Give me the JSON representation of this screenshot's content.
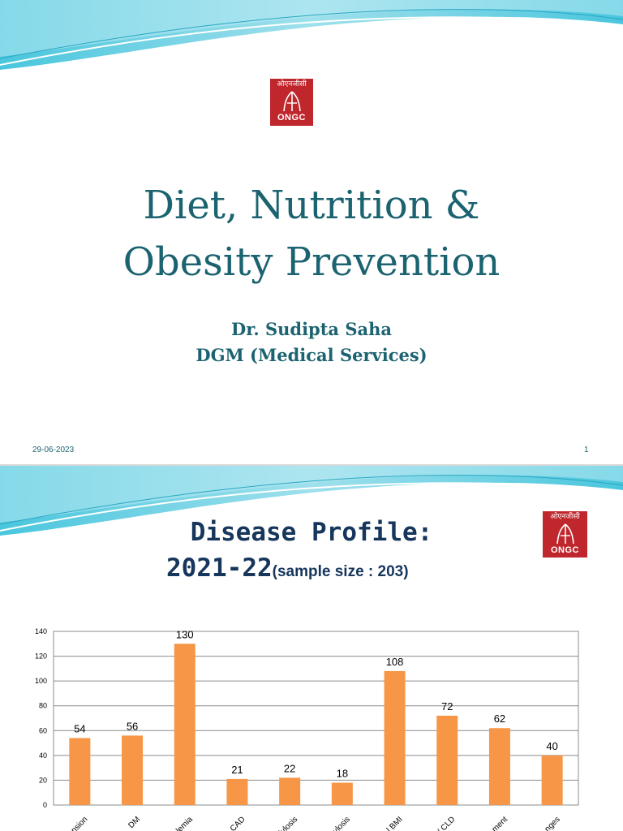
{
  "slide1": {
    "logo": {
      "devanagari": "ओएनजीसी",
      "brand": "ONGC"
    },
    "title_line1": "Diet, Nutrition &",
    "title_line2": "Obesity Prevention",
    "author": "Dr. Sudipta Saha",
    "designation": "DGM (Medical Services)",
    "date": "29-06-2023",
    "page_number": "1"
  },
  "slide2": {
    "logo": {
      "devanagari": "ओएनजीसी",
      "brand": "ONGC"
    },
    "title_line1": "Disease Profile:",
    "title_line2_main": "2021-22",
    "title_line2_sub": "(sample size : 203)"
  },
  "colors": {
    "title": "#1b6370",
    "title2": "#16365c",
    "bar": "#f79646",
    "logo": "#c0272d"
  },
  "chart_data": {
    "type": "bar",
    "categories": [
      "nsion",
      "DM",
      "lemia",
      "CAD",
      "iylosis",
      "ylosis",
      "l BMI",
      "/ CLD",
      "ment",
      "nges"
    ],
    "values": [
      54,
      56,
      130,
      21,
      22,
      18,
      108,
      72,
      62,
      40
    ],
    "ylim": [
      0,
      140
    ],
    "yticks": [
      0,
      20,
      40,
      60,
      80,
      100,
      120,
      140
    ],
    "grid": true,
    "data_labels": true
  }
}
